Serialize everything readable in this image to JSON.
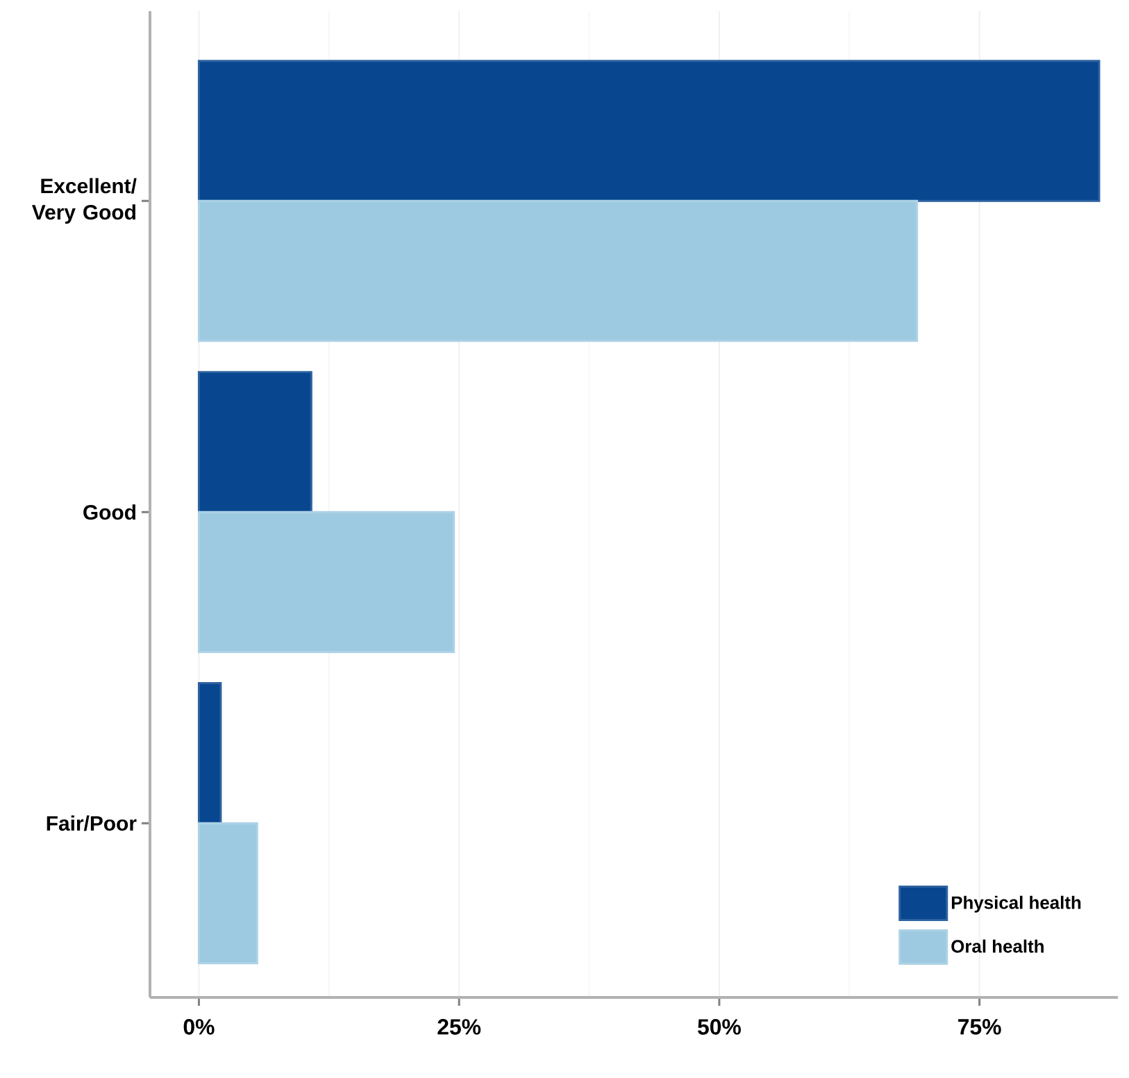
{
  "chart_data": {
    "type": "bar",
    "orientation": "horizontal",
    "categories": [
      "Excellent/ Very Good",
      "Good",
      "Fair/Poor"
    ],
    "series": [
      {
        "name": "Physical health",
        "color": "#08468f",
        "values": [
          86.5,
          10.8,
          2.1
        ]
      },
      {
        "name": "Oral health",
        "color": "#9ecae1",
        "values": [
          69,
          24.5,
          5.6
        ]
      }
    ],
    "xlim": [
      -4.7,
      88.3
    ],
    "xticks": [
      {
        "value": 0,
        "label": "0%"
      },
      {
        "value": 25,
        "label": "25%"
      },
      {
        "value": 50,
        "label": "50%"
      },
      {
        "value": 75,
        "label": "75%"
      }
    ],
    "grid": "x",
    "legend": "bottom right"
  }
}
